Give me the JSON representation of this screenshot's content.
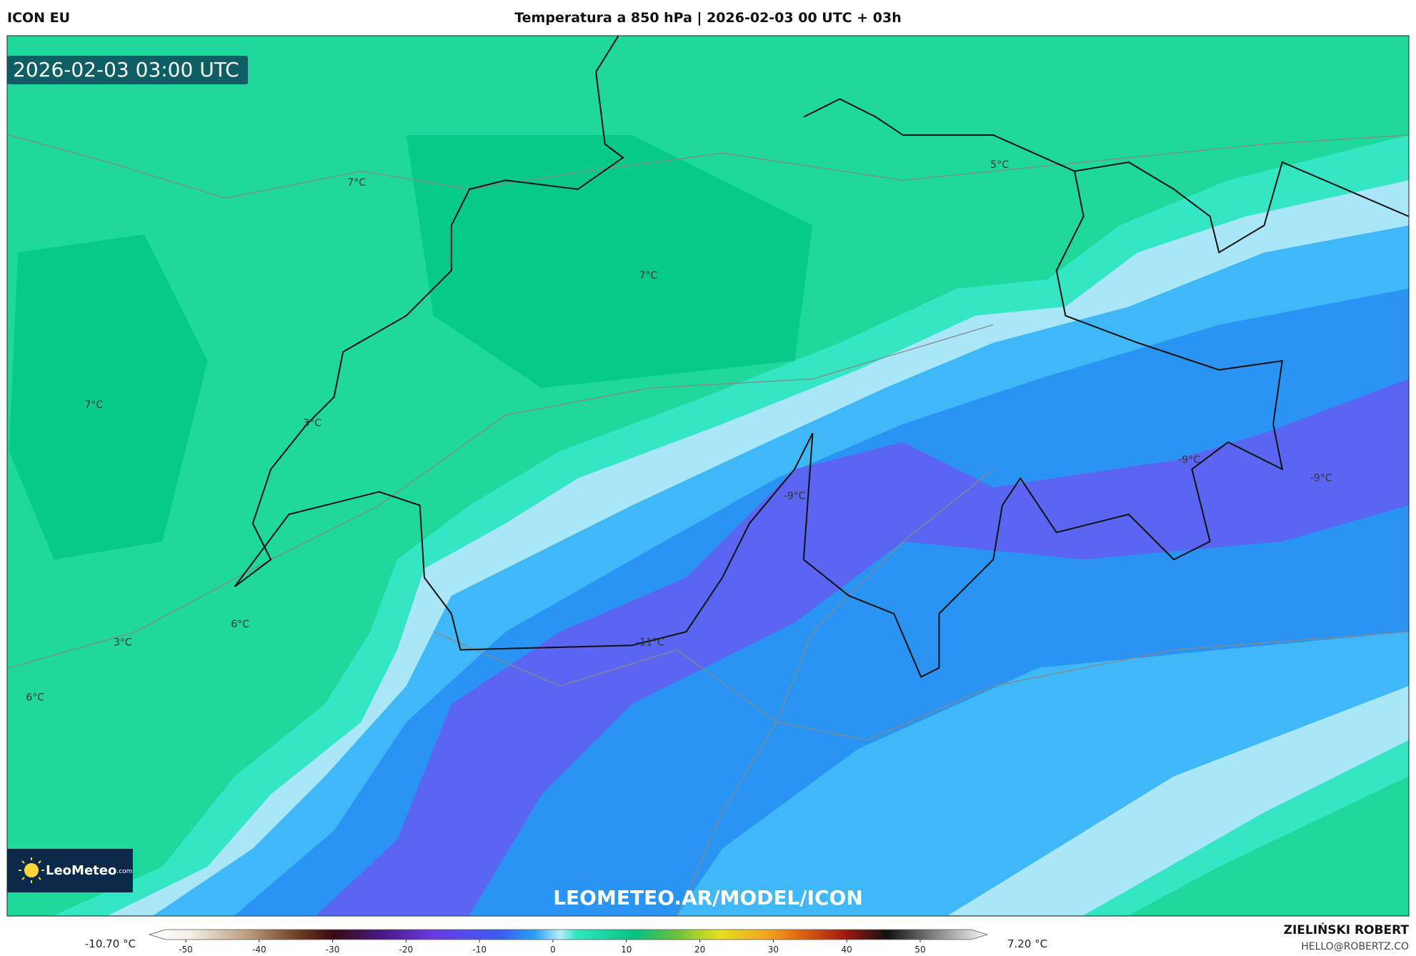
{
  "header": {
    "model": "ICON EU",
    "title": "Temperatura a 850 hPa | 2026-02-03 00 UTC + 03h"
  },
  "map": {
    "timestamp": "2026-02-03 03:00 UTC",
    "watermark": "LEOMETEO.AR/MODEL/ICON",
    "labels": [
      "7°C",
      "5°C",
      "7°C",
      "7°C",
      "3°C",
      "-9°C",
      "-9°C",
      "-9°C",
      "-11°C",
      "6°C",
      "3°C",
      "6°C"
    ],
    "logo": {
      "name": "LeoMeteo",
      "suffix": ".com"
    }
  },
  "colorbar": {
    "min_label": "-10.70 °C",
    "max_label": "7.20 °C",
    "ticks": [
      -50,
      -40,
      -30,
      -20,
      -10,
      0,
      10,
      20,
      30,
      40,
      50
    ]
  },
  "footer": {
    "author": "ZIELIŃSKI ROBERT",
    "email": "HELLO@ROBERTZ.CO"
  }
}
